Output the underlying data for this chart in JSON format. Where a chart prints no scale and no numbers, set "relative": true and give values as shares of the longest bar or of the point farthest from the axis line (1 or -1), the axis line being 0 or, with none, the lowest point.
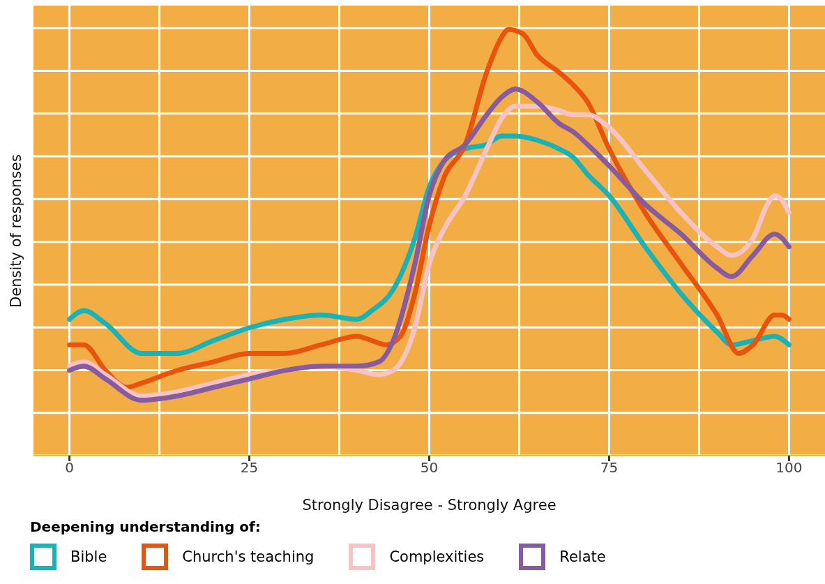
{
  "chart_data": {
    "type": "line",
    "relative": true,
    "xlabel": "Strongly Disagree - Strongly Agree",
    "ylabel": "Density of responses",
    "legend_title": "Deepening understanding of:",
    "legend": "bottom",
    "grid": true,
    "xlim": [
      -5,
      105
    ],
    "xticks": [
      0,
      25,
      50,
      75,
      100
    ],
    "line_style": "solid",
    "marker": "none",
    "series": [
      {
        "name": "Bible",
        "color": "#17b3b7",
        "x": [
          0,
          2,
          5,
          10,
          15,
          20,
          25,
          30,
          35,
          40,
          42,
          45,
          48,
          50,
          52,
          55,
          58,
          60,
          62,
          65,
          68,
          70,
          72,
          75,
          80,
          85,
          90,
          92,
          95,
          98,
          100
        ],
        "values": [
          0.32,
          0.34,
          0.31,
          0.24,
          0.24,
          0.27,
          0.3,
          0.32,
          0.33,
          0.32,
          0.34,
          0.39,
          0.51,
          0.63,
          0.69,
          0.72,
          0.73,
          0.75,
          0.75,
          0.74,
          0.72,
          0.7,
          0.66,
          0.61,
          0.49,
          0.38,
          0.29,
          0.26,
          0.27,
          0.28,
          0.26
        ]
      },
      {
        "name": "Church's teaching",
        "color": "#e8540e",
        "x": [
          0,
          2,
          5,
          8,
          10,
          15,
          20,
          25,
          30,
          35,
          40,
          42,
          44,
          46,
          48,
          50,
          52,
          55,
          58,
          60,
          61,
          63,
          65,
          68,
          70,
          72,
          75,
          80,
          85,
          90,
          93,
          95,
          98,
          99,
          100
        ],
        "values": [
          0.26,
          0.26,
          0.2,
          0.16,
          0.17,
          0.2,
          0.22,
          0.24,
          0.24,
          0.26,
          0.28,
          0.27,
          0.26,
          0.28,
          0.38,
          0.54,
          0.65,
          0.73,
          0.9,
          0.98,
          1,
          0.99,
          0.94,
          0.9,
          0.87,
          0.83,
          0.72,
          0.57,
          0.45,
          0.33,
          0.24,
          0.26,
          0.33,
          0.33,
          0.32
        ]
      },
      {
        "name": "Complexities",
        "color": "#f6c4c7",
        "x": [
          0,
          2,
          5,
          10,
          15,
          20,
          25,
          30,
          35,
          40,
          43,
          45,
          48,
          50,
          52,
          55,
          58,
          60,
          62,
          65,
          68,
          70,
          72,
          75,
          80,
          85,
          90,
          92,
          95,
          97,
          98,
          99,
          100
        ],
        "values": [
          0.21,
          0.22,
          0.19,
          0.14,
          0.15,
          0.17,
          0.19,
          0.2,
          0.21,
          0.2,
          0.19,
          0.2,
          0.3,
          0.45,
          0.53,
          0.61,
          0.72,
          0.79,
          0.82,
          0.82,
          0.81,
          0.8,
          0.8,
          0.77,
          0.67,
          0.57,
          0.49,
          0.47,
          0.51,
          0.59,
          0.61,
          0.6,
          0.57
        ]
      },
      {
        "name": "Relate",
        "color": "#875ba1",
        "x": [
          0,
          2,
          5,
          10,
          15,
          20,
          25,
          30,
          35,
          40,
          43,
          45,
          48,
          50,
          52,
          55,
          58,
          60,
          62,
          65,
          68,
          70,
          72,
          75,
          80,
          85,
          90,
          92,
          95,
          98,
          100
        ],
        "values": [
          0.2,
          0.21,
          0.18,
          0.13,
          0.14,
          0.16,
          0.18,
          0.2,
          0.21,
          0.21,
          0.22,
          0.27,
          0.45,
          0.61,
          0.69,
          0.73,
          0.8,
          0.84,
          0.86,
          0.83,
          0.78,
          0.76,
          0.73,
          0.68,
          0.59,
          0.52,
          0.44,
          0.42,
          0.47,
          0.52,
          0.49
        ]
      }
    ]
  }
}
